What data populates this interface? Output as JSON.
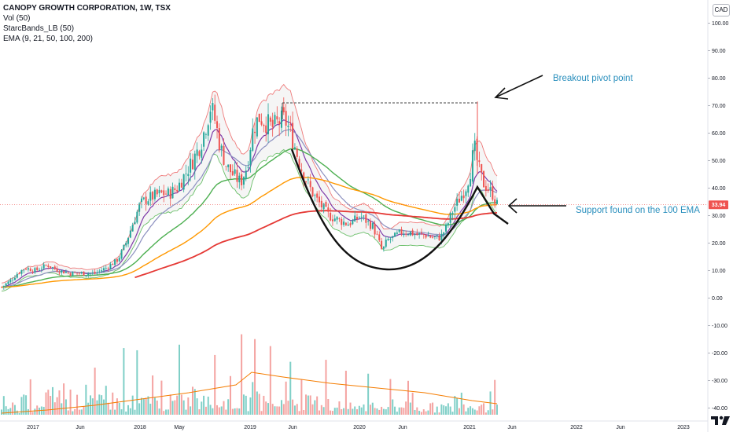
{
  "legend": {
    "title": "CANOPY GROWTH CORPORATION, 1W, TSX",
    "line2": "Vol (50)",
    "line3": "StarcBands_LB (50)",
    "line4": "EMA (9, 21, 50, 100, 200)"
  },
  "currency": "CAD",
  "price_badge": "33.94",
  "chart_data": {
    "type": "candlestick",
    "ticker": "CANOPY GROWTH CORPORATION",
    "interval": "1W",
    "exchange": "TSX",
    "y_axis_ticks": [
      "100.00",
      "90.00",
      "80.00",
      "70.00",
      "60.00",
      "50.00",
      "40.00",
      "30.00",
      "20.00",
      "10.00",
      "0.00",
      "-10.00",
      "-20.00",
      "-30.00",
      "-40.00"
    ],
    "x_axis_ticks": [
      "2017",
      "Jun",
      "2018",
      "May",
      "2019",
      "Jun",
      "2020",
      "Jun",
      "2021",
      "Jun",
      "2022",
      "Jun",
      "2023"
    ],
    "last_price": 33.94,
    "close_series_approx": {
      "dates": [
        "2016-12",
        "2017-03",
        "2017-06",
        "2017-09",
        "2017-12",
        "2018-01",
        "2018-03",
        "2018-05",
        "2018-07",
        "2018-09",
        "2018-11",
        "2019-01",
        "2019-03",
        "2019-05",
        "2019-07",
        "2019-09",
        "2019-11",
        "2020-01",
        "2020-03",
        "2020-05",
        "2020-07",
        "2020-09",
        "2020-11",
        "2021-01",
        "2021-02",
        "2021-03",
        "2021-04"
      ],
      "values": [
        4,
        10,
        8,
        9,
        14,
        28,
        35,
        38,
        48,
        70,
        45,
        55,
        65,
        58,
        48,
        34,
        26,
        28,
        18,
        22,
        23,
        22,
        30,
        38,
        55,
        42,
        34
      ]
    },
    "annotations": [
      {
        "text": "Breakout pivot point"
      },
      {
        "text": "Support found on the 100 EMA"
      }
    ],
    "resistance_level": 71,
    "cup_low": 10
  }
}
